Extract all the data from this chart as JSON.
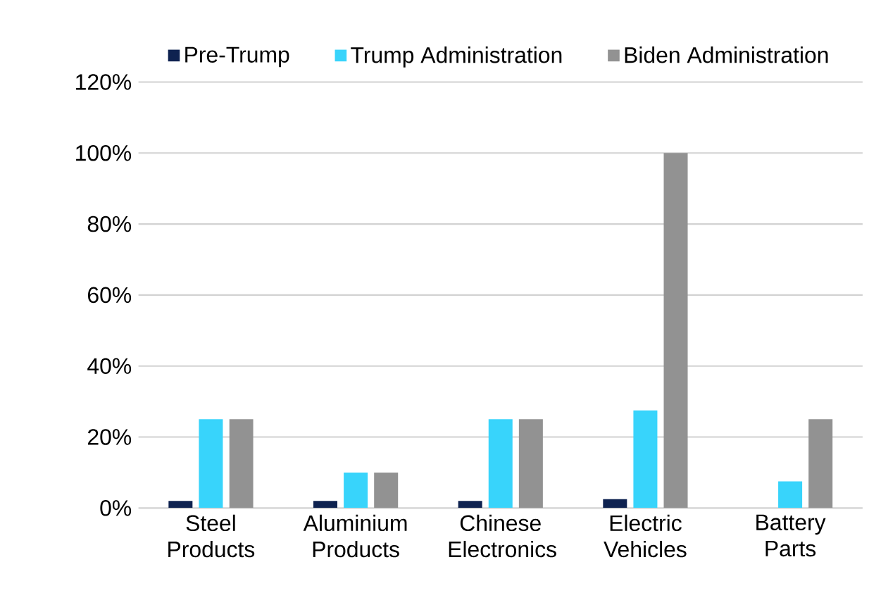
{
  "chart_data": {
    "type": "bar",
    "categories": [
      "Steel Products",
      "Aluminium Products",
      "Chinese Electronics",
      "Electric Vehicles",
      "Battery Parts"
    ],
    "series": [
      {
        "name": "Pre-Trump",
        "color": "#0e2250",
        "values": [
          2,
          2,
          2,
          2.5,
          null
        ]
      },
      {
        "name": "Trump Administration",
        "color": "#38d4fb",
        "values": [
          25,
          10,
          25,
          27.5,
          7.5
        ]
      },
      {
        "name": "Biden Administration",
        "color": "#929292",
        "values": [
          25,
          10,
          25,
          100,
          25
        ]
      }
    ],
    "ylim": [
      0,
      120
    ],
    "yticks": [
      {
        "value": 0,
        "label": "0%"
      },
      {
        "value": 20,
        "label": "20%"
      },
      {
        "value": 40,
        "label": "40%"
      },
      {
        "value": 60,
        "label": "60%"
      },
      {
        "value": 80,
        "label": "80%"
      },
      {
        "value": 100,
        "label": "100%"
      },
      {
        "value": 120,
        "label": "120%"
      }
    ],
    "grid": "y",
    "legend": "top"
  }
}
